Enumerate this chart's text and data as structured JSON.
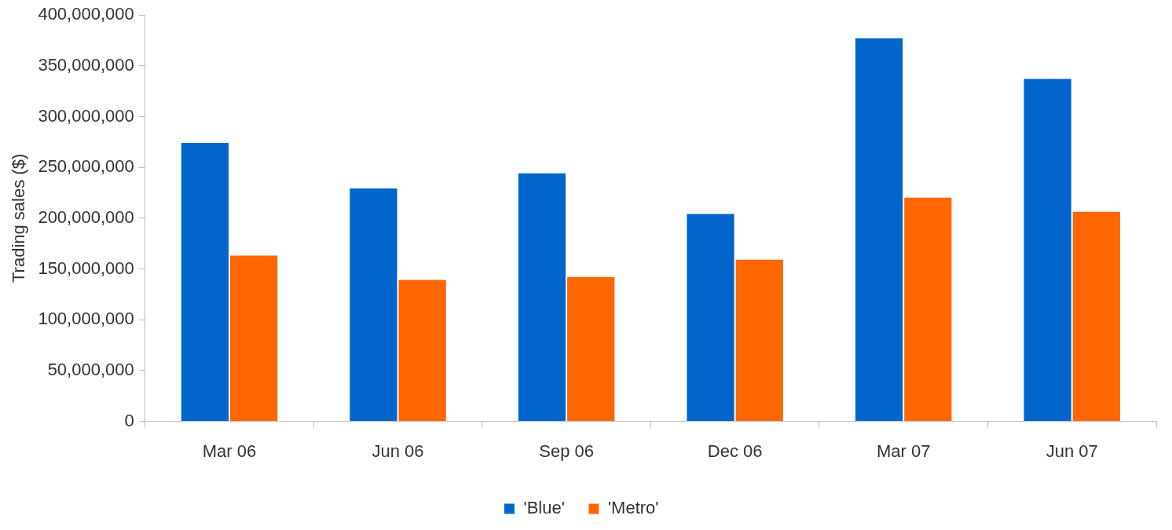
{
  "chart_data": {
    "type": "bar",
    "ylabel": "Trading sales ($)",
    "categories": [
      "Mar 06",
      "Jun 06",
      "Sep 06",
      "Dec 06",
      "Mar 07",
      "Jun 07"
    ],
    "series": [
      {
        "name": "'Blue'",
        "color": "#0066cc",
        "values": [
          275000000,
          230000000,
          245000000,
          205000000,
          378000000,
          338000000
        ]
      },
      {
        "name": "'Metro'",
        "color": "#ff6600",
        "values": [
          164000000,
          140000000,
          143000000,
          160000000,
          221000000,
          207000000
        ]
      }
    ],
    "ylim": [
      0,
      400000000
    ],
    "yticks": [
      0,
      {
        "value": 50000000,
        "label": "50,000,000"
      },
      {
        "value": 100000000,
        "label": "100,000,000"
      },
      {
        "value": 150000000,
        "label": "150,000,000"
      },
      {
        "value": 200000000,
        "label": "200,000,000"
      },
      {
        "value": 250000000,
        "label": "250,000,000"
      },
      {
        "value": 300000000,
        "label": "300,000,000"
      },
      {
        "value": 350000000,
        "label": "350,000,000"
      },
      {
        "value": 400000000,
        "label": "400,000,000"
      }
    ],
    "grid": false,
    "legend": "bottom"
  }
}
